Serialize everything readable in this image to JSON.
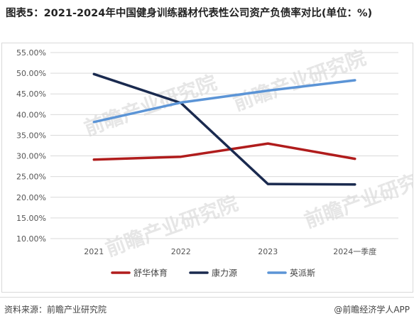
{
  "header": {
    "title": "图表5：2021-2024年中国健身训练器材代表性公司资产负债率对比(单位：%)"
  },
  "footer": {
    "source": "资料来源：前瞻产业研究院",
    "credit": "@前瞻经济学人APP"
  },
  "watermark": {
    "text": "前瞻产业研究院"
  },
  "chart_data": {
    "type": "line",
    "title": "图表5：2021-2024年中国健身训练器材代表性公司资产负债率对比(单位：%)",
    "categories": [
      "2021",
      "2022",
      "2023",
      "2024一季度"
    ],
    "y_tick_labels": [
      "10.00%",
      "15.00%",
      "20.00%",
      "25.00%",
      "30.00%",
      "35.00%",
      "40.00%",
      "45.00%",
      "50.00%",
      "55.00%"
    ],
    "ylim": [
      10,
      55
    ],
    "grid": true,
    "legend_position": "bottom",
    "series": [
      {
        "name": "舒华体育",
        "color": "#b01c1c",
        "values": [
          29.1,
          29.8,
          33.0,
          29.3
        ]
      },
      {
        "name": "康力源",
        "color": "#1a2a4f",
        "values": [
          49.8,
          42.8,
          23.2,
          23.1
        ]
      },
      {
        "name": "英派斯",
        "color": "#5b94d6",
        "values": [
          38.2,
          42.9,
          45.8,
          48.3
        ]
      }
    ]
  }
}
